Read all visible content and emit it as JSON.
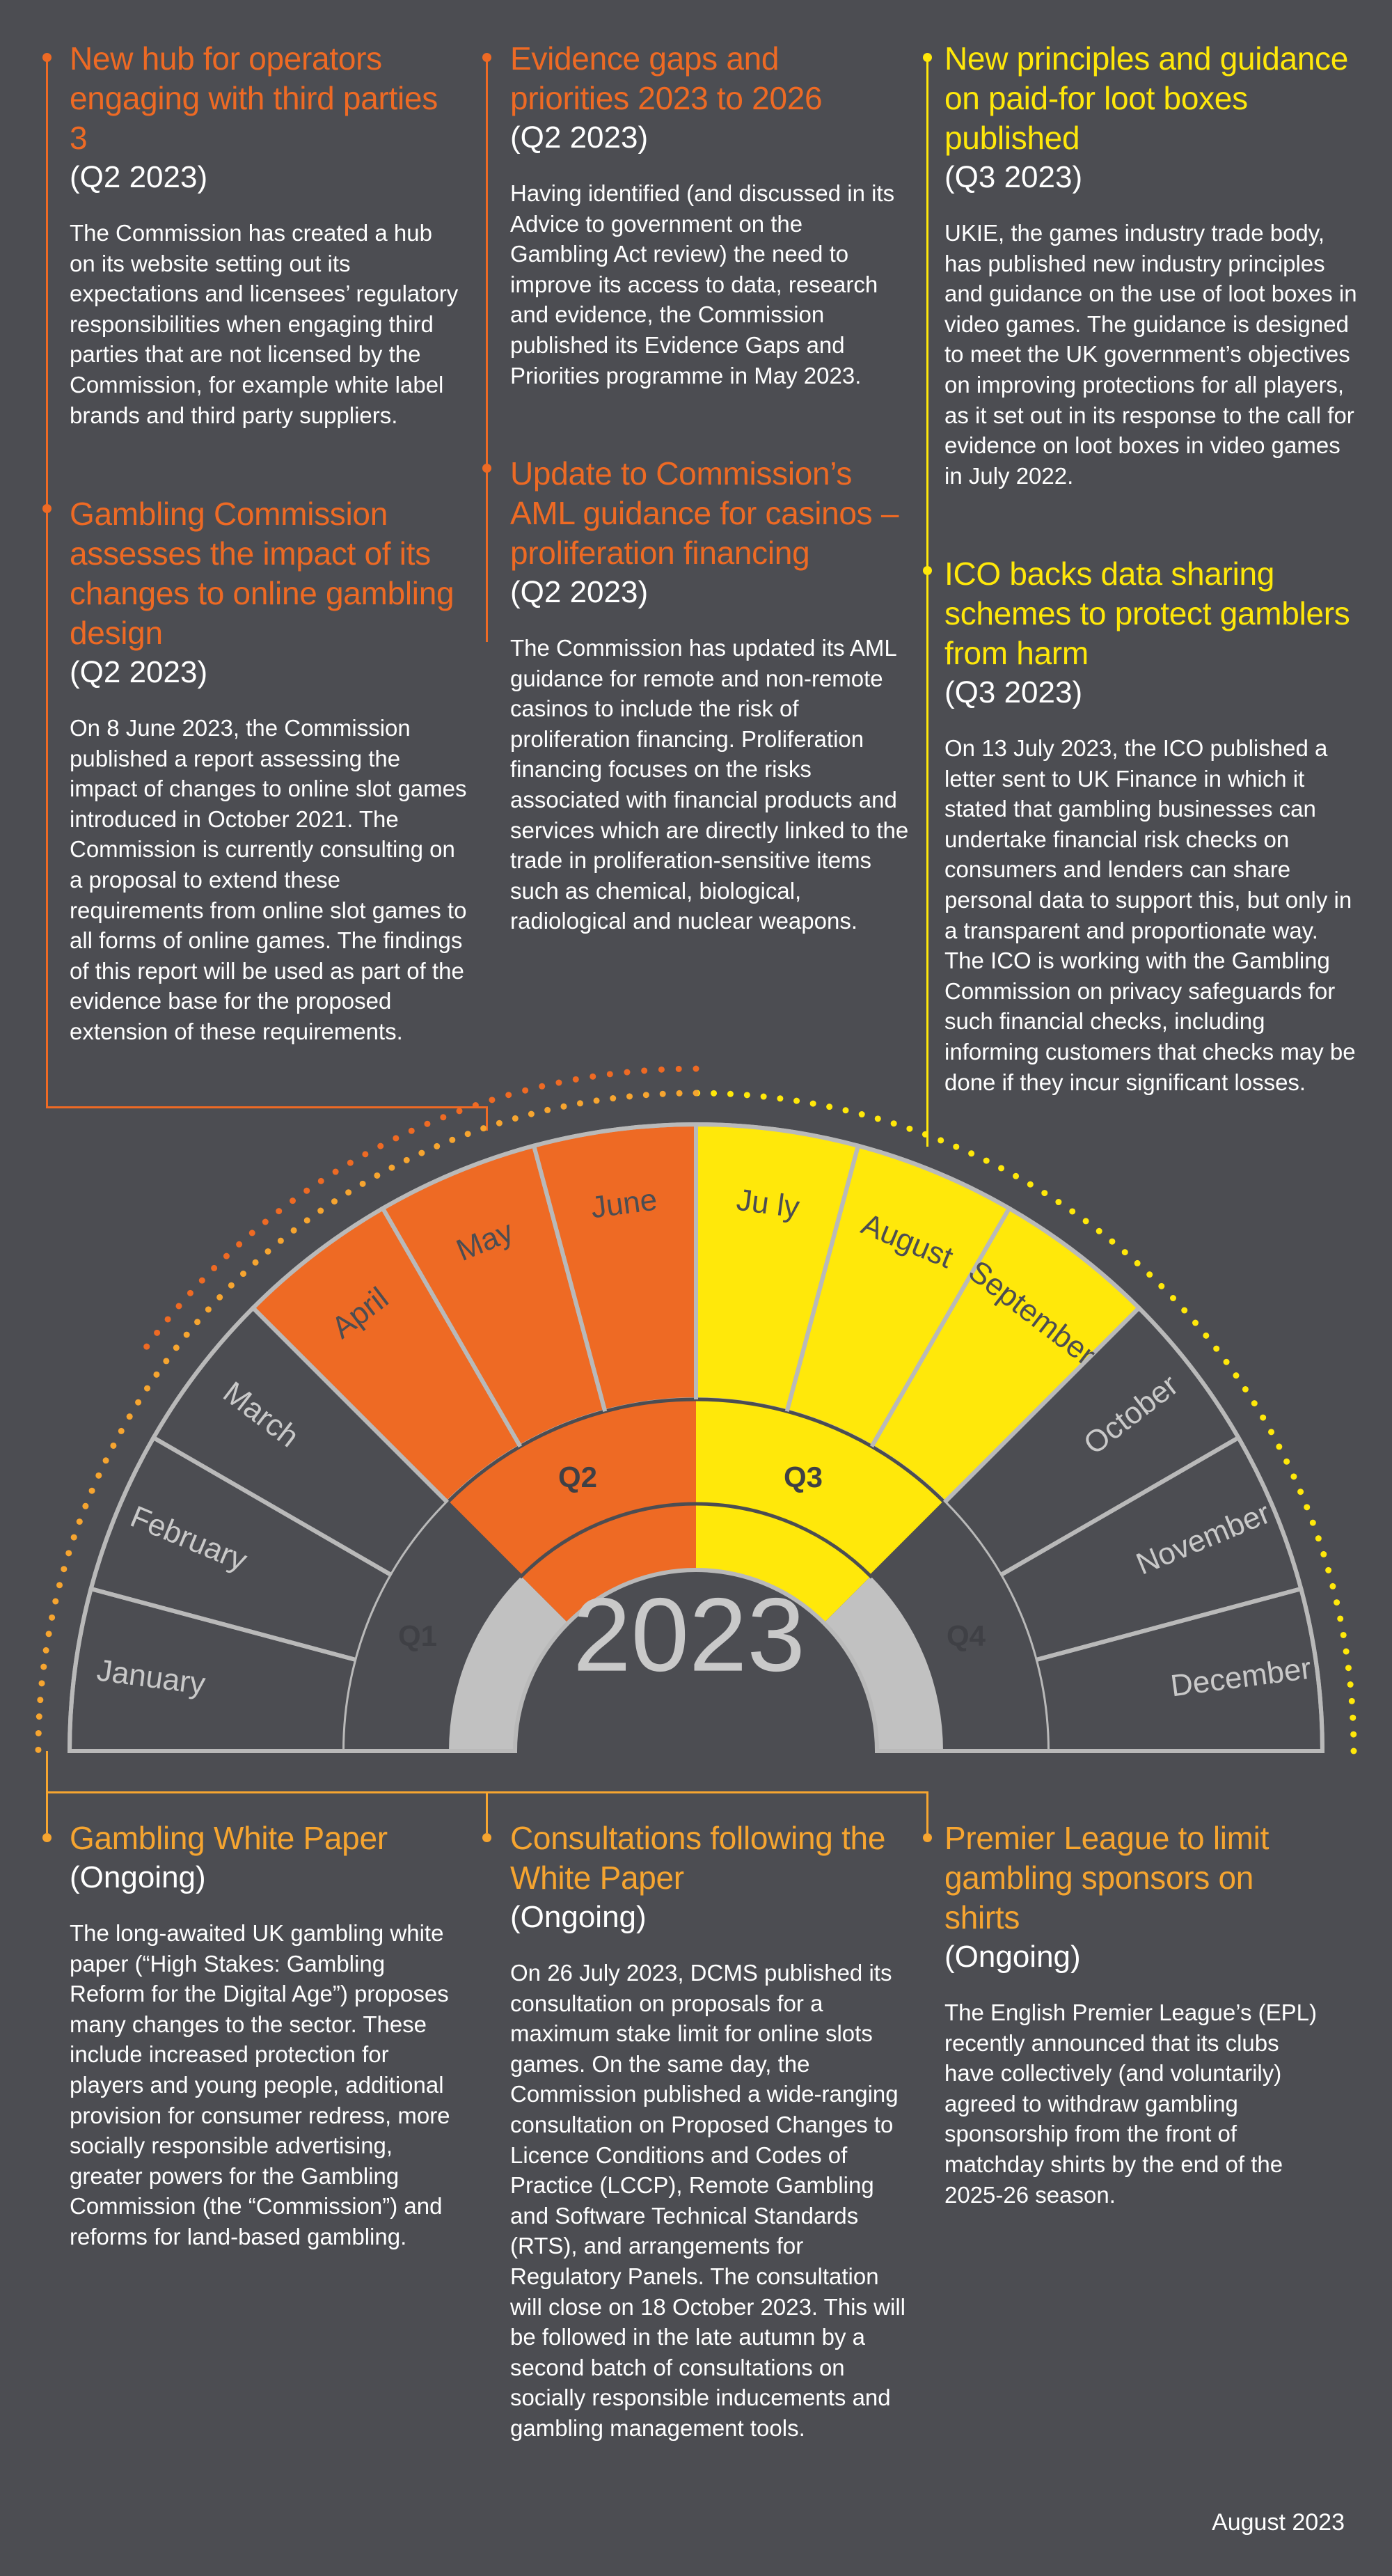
{
  "colors": {
    "background": "#4c4d52",
    "orange": "#ee6a24",
    "yellow": "#ffe80a",
    "amber": "#f6a530",
    "q_gray": "#c1c1c1",
    "line_gray": "#b9b9b9"
  },
  "top_left": [
    {
      "title": "New hub for operators engaging with third parties 3",
      "period": "(Q2 2023)",
      "body": "The Commission has created a hub on its website setting out its expectations and licensees’ regulatory responsibilities when engaging third parties that are not licensed by the Commission, for example white label brands and third party suppliers."
    },
    {
      "title": "Gambling Commission assesses the impact of its changes to online gambling design",
      "period": "(Q2 2023)",
      "body": "On 8 June 2023, the Commission published a report assessing the impact of changes to online slot games introduced in October 2021. The Commission is currently consulting on a proposal to extend these requirements from online slot games to all forms of online games. The findings of this report will be used as part of the evidence base for the proposed extension of these requirements."
    }
  ],
  "top_middle": [
    {
      "title": "Evidence gaps and priorities 2023 to 2026",
      "period": "(Q2 2023)",
      "body": "Having identified (and discussed in its Advice to government on the Gambling Act review) the need to improve its access to data, research and evidence, the Commission published its Evidence Gaps and Priorities programme in May 2023."
    },
    {
      "title": "Update to Commission’s AML guidance for casinos – proliferation financing",
      "period": "(Q2 2023)",
      "body": "The Commission has updated its AML guidance for remote and non-remote casinos to include the risk of proliferation financing. Proliferation financing focuses on the risks associated with financial products and services which are directly linked to the trade in proliferation-sensitive items such as chemical, biological, radiological and nuclear weapons."
    }
  ],
  "top_right": [
    {
      "title": "New principles and guidance on paid-for loot boxes published",
      "period": "(Q3 2023)",
      "body": "UKIE, the games industry trade body, has published new industry principles and guidance on the use of loot boxes in video games. The guidance is designed to meet the UK government’s objectives on improving protections for all players, as it set out in its response to the call for evidence on loot boxes in video games in July 2022."
    },
    {
      "title": "ICO backs data sharing schemes to protect gamblers from harm",
      "period": "(Q3 2023)",
      "body": "On 13 July 2023, the ICO published a letter sent to UK Finance in which it stated that gambling businesses can undertake financial risk checks on consumers and lenders can share personal data to support this, but only in a transparent and proportionate way. The ICO is working with the Gambling Commission on privacy safeguards for such financial checks, including informing customers that checks may be done if they incur significant losses."
    }
  ],
  "bottom": [
    {
      "title": "Gambling White Paper",
      "period": "(Ongoing)",
      "body": "The long-awaited UK gambling white paper (“High Stakes: Gambling Reform for the Digital Age”) proposes many changes to the sector. These include increased protection for players and young people, additional provision for consumer redress, more socially responsible advertising, greater powers for the Gambling Commission (the “Commission”) and reforms for land-based gambling."
    },
    {
      "title": "Consultations following the White Paper",
      "period": "(Ongoing)",
      "body": "On 26 July 2023, DCMS published its consultation on proposals for a maximum stake limit for online slots games.  On the same day, the Commission published a wide-ranging consultation on Proposed Changes to Licence Conditions and Codes of Practice (LCCP), Remote Gambling and Software Technical Standards (RTS), and arrangements for Regulatory Panels. The consultation will close on 18 October 2023. This will be followed in the late autumn by a second batch of consultations on socially responsible inducements and gambling management tools."
    },
    {
      "title": "Premier League to limit gambling sponsors on shirts",
      "period": "(Ongoing)",
      "body": "The English Premier League’s (EPL) recently announced that its clubs have collectively (and voluntarily) agreed to withdraw gambling sponsorship from the front of matchday shirts by the end of the 2025-26 season."
    }
  ],
  "dial": {
    "year": "2023",
    "quarters": [
      "Q1",
      "Q2",
      "Q3",
      "Q4"
    ],
    "months": [
      "January",
      "February",
      "March",
      "April",
      "May",
      "June",
      "Ju ly",
      "August",
      "September",
      "October",
      "November",
      "December"
    ]
  },
  "footer": {
    "date": "August 2023"
  }
}
